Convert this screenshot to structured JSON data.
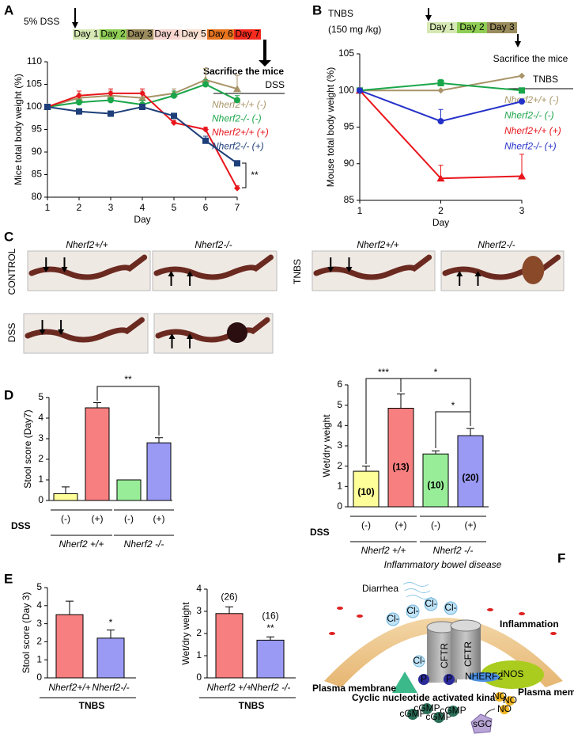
{
  "panels": [
    "A",
    "B",
    "C",
    "D",
    "E",
    "F"
  ],
  "timelines": [
    {
      "label": [
        "5% DSS"
      ],
      "days": [
        "Day 1",
        "Day 2",
        "Day 3",
        "Day 4",
        "Day 5",
        "Day 6",
        "Day 7"
      ],
      "colors": [
        "#d6e9b4",
        "#8fcd55",
        "#9a8c5c",
        "#f6d6cf",
        "#fbe2d2",
        "#e8741e",
        "#f42a1e"
      ],
      "end_label": "Sacrifice the mice"
    },
    {
      "label": [
        "TNBS",
        "(150 mg /kg)"
      ],
      "days": [
        "Day 1",
        "Day 2",
        "Day 3"
      ],
      "colors": [
        "#d6e9b4",
        "#8fcd55",
        "#9a8c5c"
      ],
      "end_label": "Sacrifice the mice"
    }
  ],
  "photos": {
    "columns": [
      "Nherf2+/+",
      "Nherf2-/-",
      "Nherf2+/+",
      "Nherf2-/-"
    ],
    "rows": [
      "CONTROL",
      "DSS"
    ],
    "tnbs_label": "TNBS"
  },
  "chart_data": [
    {
      "type": "line",
      "x": [
        1,
        2,
        3,
        4,
        5,
        6,
        7
      ],
      "xlim": [
        1,
        7
      ],
      "xticks": [
        1,
        2,
        3,
        4,
        5,
        6,
        7
      ],
      "xlabel": "Day",
      "ylabel": "Mice total body weight (%)",
      "ylim": [
        80,
        110
      ],
      "yticks": [
        80,
        85,
        90,
        95,
        100,
        105,
        110
      ],
      "legend_title": "DSS",
      "annotations": [
        "**"
      ],
      "series": [
        {
          "name": "Nherf2+/+ (-)",
          "color": "#a89468",
          "marker": "triangle",
          "values": [
            100,
            102,
            102.5,
            102,
            103,
            106,
            104
          ],
          "errors": [
            0,
            1,
            1,
            1.5,
            1,
            2.5,
            3
          ]
        },
        {
          "name": "Nherf2-/- (-)",
          "color": "#1aa64a",
          "marker": "circle",
          "values": [
            100,
            101,
            101.5,
            100.5,
            102.5,
            105,
            101.5
          ],
          "errors": [
            0,
            0.5,
            0.5,
            1,
            1,
            1,
            1
          ]
        },
        {
          "name": "Nherf2+/+ (+)",
          "color": "#e8161c",
          "marker": "diamond",
          "values": [
            100,
            102.5,
            103,
            103,
            96.5,
            95,
            82
          ],
          "errors": [
            0,
            1,
            1,
            1,
            0.5,
            0.5,
            0.5
          ]
        },
        {
          "name": "Nherf2-/- (+)",
          "color": "#1f3f7a",
          "marker": "square",
          "values": [
            100,
            99,
            98.5,
            100,
            98,
            92.5,
            87.5
          ],
          "errors": [
            0,
            0.5,
            0.5,
            0.5,
            0.5,
            1,
            0.5
          ]
        }
      ]
    },
    {
      "type": "line",
      "x": [
        1,
        2,
        3
      ],
      "xlim": [
        1,
        3
      ],
      "xticks": [
        1,
        2,
        3
      ],
      "xlabel": "Day",
      "ylabel": "Mouse total body weight (%)",
      "ylim": [
        85,
        105
      ],
      "yticks": [
        85,
        90,
        95,
        100,
        105
      ],
      "legend_title": "TNBS",
      "annotations": [],
      "series": [
        {
          "name": "Nherf2+/+ (-)",
          "color": "#a89468",
          "marker": "diamond",
          "values": [
            100,
            100,
            102
          ],
          "errors": [
            0,
            0,
            0
          ]
        },
        {
          "name": "Nherf2-/- (-)",
          "color": "#1aa64a",
          "marker": "square",
          "values": [
            100,
            101,
            100
          ],
          "errors": [
            0,
            0.5,
            0
          ]
        },
        {
          "name": "Nherf2+/+ (+)",
          "color": "#e8161c",
          "marker": "triangle",
          "values": [
            100,
            88,
            88.3
          ],
          "errors": [
            0,
            1.8,
            3
          ]
        },
        {
          "name": "Nherf2-/- (+)",
          "color": "#2330c8",
          "marker": "circle",
          "values": [
            100,
            95.8,
            98.5
          ],
          "errors": [
            0,
            1.6,
            0
          ]
        }
      ]
    },
    {
      "type": "bar",
      "categories": [
        "(-)",
        "(+)",
        "(-)",
        "(+)"
      ],
      "values": [
        0.33,
        4.5,
        1.0,
        2.8
      ],
      "errors": [
        0.33,
        0.25,
        0,
        0.25
      ],
      "colors": [
        "#ffff99",
        "#f77f7f",
        "#98ee98",
        "#9a9af5"
      ],
      "ylabel": "Stool score (Day7)",
      "ylim": [
        0,
        5
      ],
      "yticks": [
        0,
        1,
        2,
        3,
        4,
        5
      ],
      "row_label": "DSS",
      "group_labels": [
        "Nherf2 +/+",
        "Nherf2 -/-"
      ],
      "annotations": [
        "**"
      ]
    },
    {
      "type": "bar",
      "categories": [
        "(-)",
        "(+)",
        "(-)",
        "(+)"
      ],
      "values": [
        1.75,
        4.85,
        2.6,
        3.5
      ],
      "errors": [
        0.25,
        0.7,
        0.15,
        0.35
      ],
      "n_labels": [
        "(10)",
        "(13)",
        "(10)",
        "(20)"
      ],
      "colors": [
        "#ffff99",
        "#f77f7f",
        "#98ee98",
        "#9a9af5"
      ],
      "ylabel": "Wet/dry weight",
      "ylim": [
        0,
        6
      ],
      "yticks": [
        0,
        1,
        2,
        3,
        4,
        5,
        6
      ],
      "row_label": "DSS",
      "group_labels": [
        "Nherf2 +/+",
        "Nherf2 -/-"
      ],
      "annotations": [
        "***",
        "*",
        "*"
      ]
    },
    {
      "type": "bar",
      "categories": [
        "Nherf2+/+",
        "Nherf2-/-"
      ],
      "values": [
        3.5,
        2.2
      ],
      "errors": [
        0.75,
        0.45
      ],
      "colors": [
        "#f77f7f",
        "#9a9af5"
      ],
      "ylabel": "Stool score (Day 3)",
      "ylim": [
        0,
        5
      ],
      "yticks": [
        0,
        1,
        2,
        3,
        4,
        5
      ],
      "group_label": "TNBS",
      "annotations": [
        "*"
      ]
    },
    {
      "type": "bar",
      "categories": [
        "Nherf2 +/+",
        "Nherf2 -/-"
      ],
      "values": [
        2.9,
        1.7
      ],
      "errors": [
        0.3,
        0.15
      ],
      "n_labels": [
        "(26)",
        "(16)"
      ],
      "colors": [
        "#f77f7f",
        "#9a9af5"
      ],
      "ylabel": "Wet/dry weight",
      "ylim": [
        0,
        4
      ],
      "yticks": [
        0,
        1,
        2,
        3,
        4
      ],
      "group_label": "TNBS",
      "annotations": [
        "**"
      ]
    }
  ],
  "diagram": {
    "title": "Inflammatory bowel disease",
    "diarrhea": "Diarrhea",
    "chloride": "Cl-",
    "inflammation": "Inflammation",
    "cftr": "CFTR",
    "nherf2": "NHERF2",
    "inos": "iNOS",
    "membrane": "Plasma membrane",
    "kinase": "Cyclic nucleotide activated kinase",
    "sgc": "sGC",
    "cgmp": "cGMP",
    "no": "NO",
    "phospho": "P"
  }
}
